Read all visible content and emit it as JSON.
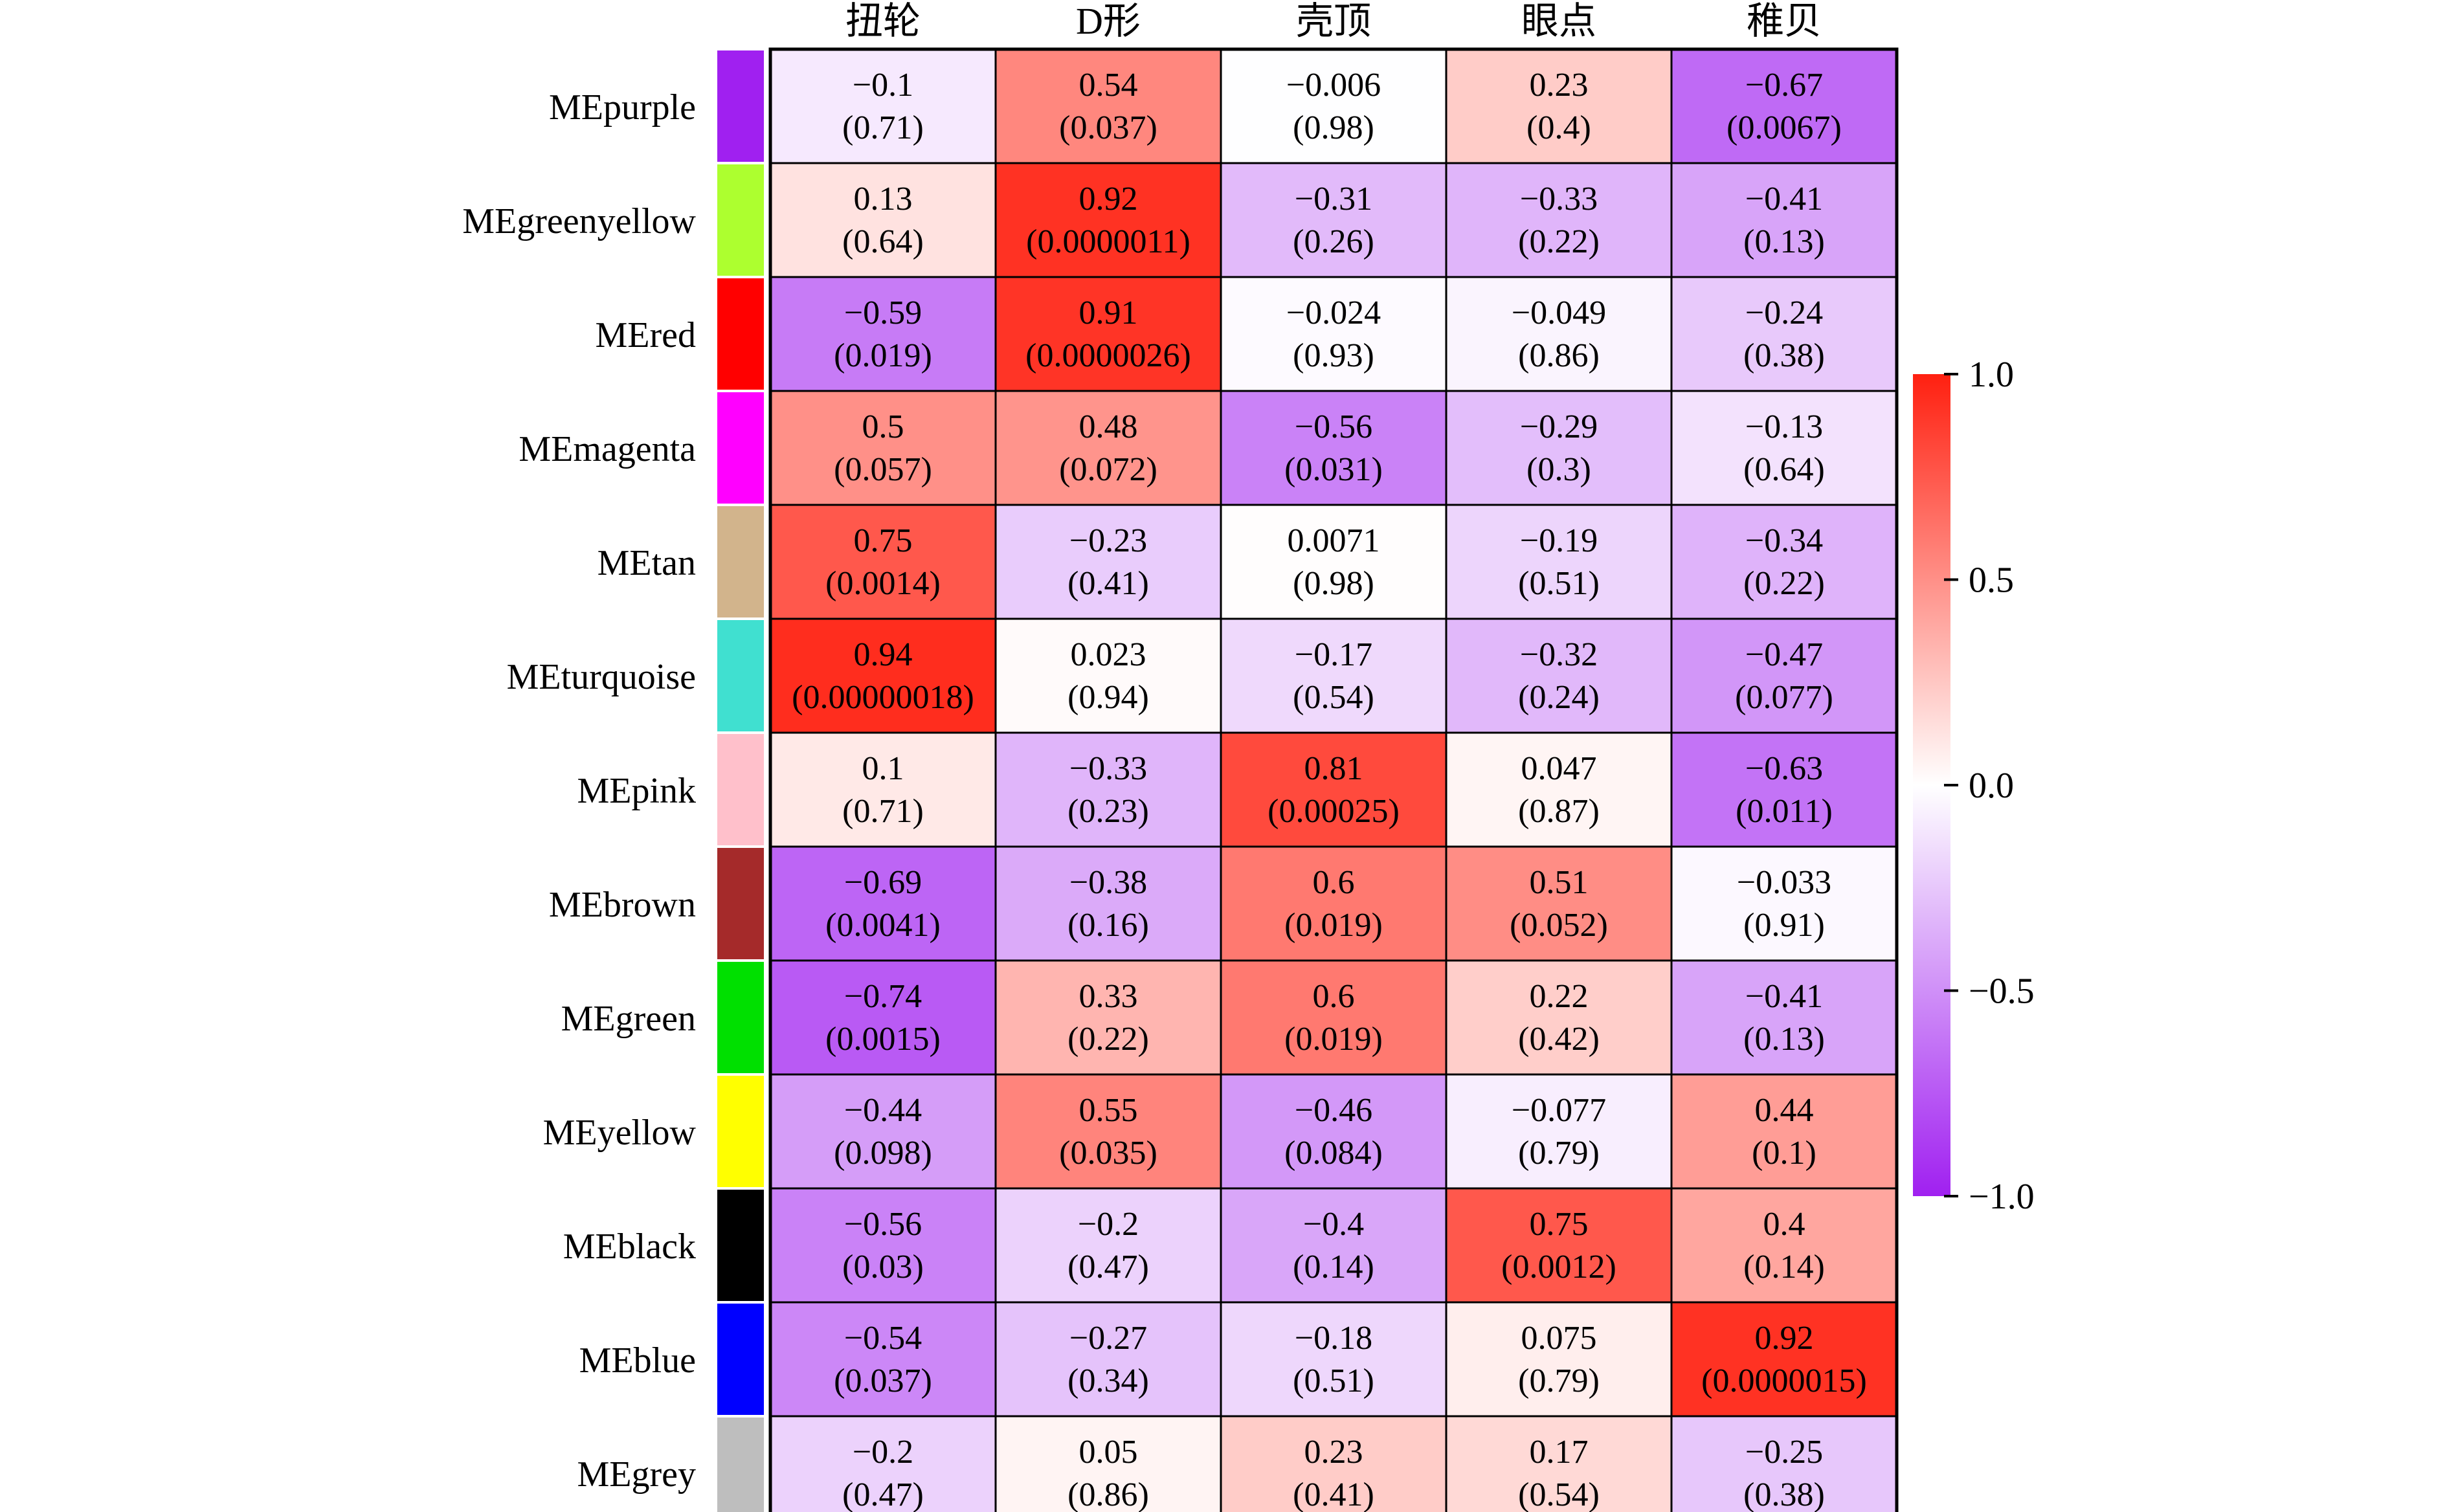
{
  "chart_data": {
    "type": "heatmap",
    "title": "",
    "xlabel": "",
    "ylabel": "",
    "columns": [
      "扭轮",
      "D形",
      "壳顶",
      "眼点",
      "稚贝"
    ],
    "rows": [
      {
        "name": "MEpurple",
        "color": "#a020f0",
        "r": [
          -0.1,
          0.54,
          -0.006,
          0.23,
          -0.67
        ],
        "p": [
          "(0.71)",
          "(0.037)",
          "(0.98)",
          "(0.4)",
          "(0.0067)"
        ],
        "r_text": [
          "−0.1",
          "0.54",
          "−0.006",
          "0.23",
          "−0.67"
        ]
      },
      {
        "name": "MEgreenyellow",
        "color": "#adff2f",
        "r": [
          0.13,
          0.92,
          -0.31,
          -0.33,
          -0.41
        ],
        "p": [
          "(0.64)",
          "(0.0000011)",
          "(0.26)",
          "(0.22)",
          "(0.13)"
        ],
        "r_text": [
          "0.13",
          "0.92",
          "−0.31",
          "−0.33",
          "−0.41"
        ]
      },
      {
        "name": "MEred",
        "color": "#ff0000",
        "r": [
          -0.59,
          0.91,
          -0.024,
          -0.049,
          -0.24
        ],
        "p": [
          "(0.019)",
          "(0.0000026)",
          "(0.93)",
          "(0.86)",
          "(0.38)"
        ],
        "r_text": [
          "−0.59",
          "0.91",
          "−0.024",
          "−0.049",
          "−0.24"
        ]
      },
      {
        "name": "MEmagenta",
        "color": "#ff00ff",
        "r": [
          0.5,
          0.48,
          -0.56,
          -0.29,
          -0.13
        ],
        "p": [
          "(0.057)",
          "(0.072)",
          "(0.031)",
          "(0.3)",
          "(0.64)"
        ],
        "r_text": [
          "0.5",
          "0.48",
          "−0.56",
          "−0.29",
          "−0.13"
        ]
      },
      {
        "name": "MEtan",
        "color": "#d2b48c",
        "r": [
          0.75,
          -0.23,
          0.0071,
          -0.19,
          -0.34
        ],
        "p": [
          "(0.0014)",
          "(0.41)",
          "(0.98)",
          "(0.51)",
          "(0.22)"
        ],
        "r_text": [
          "0.75",
          "−0.23",
          "0.0071",
          "−0.19",
          "−0.34"
        ]
      },
      {
        "name": "MEturquoise",
        "color": "#40e0d0",
        "r": [
          0.94,
          0.023,
          -0.17,
          -0.32,
          -0.47
        ],
        "p": [
          "(0.00000018)",
          "(0.94)",
          "(0.54)",
          "(0.24)",
          "(0.077)"
        ],
        "r_text": [
          "0.94",
          "0.023",
          "−0.17",
          "−0.32",
          "−0.47"
        ]
      },
      {
        "name": "MEpink",
        "color": "#ffc0cb",
        "r": [
          0.1,
          -0.33,
          0.81,
          0.047,
          -0.63
        ],
        "p": [
          "(0.71)",
          "(0.23)",
          "(0.00025)",
          "(0.87)",
          "(0.011)"
        ],
        "r_text": [
          "0.1",
          "−0.33",
          "0.81",
          "0.047",
          "−0.63"
        ]
      },
      {
        "name": "MEbrown",
        "color": "#a52a2a",
        "r": [
          -0.69,
          -0.38,
          0.6,
          0.51,
          -0.033
        ],
        "p": [
          "(0.0041)",
          "(0.16)",
          "(0.019)",
          "(0.052)",
          "(0.91)"
        ],
        "r_text": [
          "−0.69",
          "−0.38",
          "0.6",
          "0.51",
          "−0.033"
        ]
      },
      {
        "name": "MEgreen",
        "color": "#00e000",
        "r": [
          -0.74,
          0.33,
          0.6,
          0.22,
          -0.41
        ],
        "p": [
          "(0.0015)",
          "(0.22)",
          "(0.019)",
          "(0.42)",
          "(0.13)"
        ],
        "r_text": [
          "−0.74",
          "0.33",
          "0.6",
          "0.22",
          "−0.41"
        ]
      },
      {
        "name": "MEyellow",
        "color": "#ffff00",
        "r": [
          -0.44,
          0.55,
          -0.46,
          -0.077,
          0.44
        ],
        "p": [
          "(0.098)",
          "(0.035)",
          "(0.084)",
          "(0.79)",
          "(0.1)"
        ],
        "r_text": [
          "−0.44",
          "0.55",
          "−0.46",
          "−0.077",
          "0.44"
        ]
      },
      {
        "name": "MEblack",
        "color": "#000000",
        "r": [
          -0.56,
          -0.2,
          -0.4,
          0.75,
          0.4
        ],
        "p": [
          "(0.03)",
          "(0.47)",
          "(0.14)",
          "(0.0012)",
          "(0.14)"
        ],
        "r_text": [
          "−0.56",
          "−0.2",
          "−0.4",
          "0.75",
          "0.4"
        ]
      },
      {
        "name": "MEblue",
        "color": "#0000ff",
        "r": [
          -0.54,
          -0.27,
          -0.18,
          0.075,
          0.92
        ],
        "p": [
          "(0.037)",
          "(0.34)",
          "(0.51)",
          "(0.79)",
          "(0.0000015)"
        ],
        "r_text": [
          "−0.54",
          "−0.27",
          "−0.18",
          "0.075",
          "0.92"
        ]
      },
      {
        "name": "MEgrey",
        "color": "#bebebe",
        "r": [
          -0.2,
          0.05,
          0.23,
          0.17,
          -0.25
        ],
        "p": [
          "(0.47)",
          "(0.86)",
          "(0.41)",
          "(0.54)",
          "(0.38)"
        ],
        "r_text": [
          "−0.2",
          "0.05",
          "0.23",
          "0.17",
          "−0.25"
        ]
      }
    ],
    "color_scale": {
      "min": -1.0,
      "max": 1.0,
      "low_color": "#a020f0",
      "mid_color": "#ffffff",
      "high_color": "#ff2010",
      "ticks": [
        1.0,
        0.5,
        0.0,
        -0.5,
        -1.0
      ],
      "tick_labels": [
        "1.0",
        "0.5",
        "0.0",
        "−0.5",
        "−1.0"
      ]
    },
    "legend_position": "right"
  }
}
